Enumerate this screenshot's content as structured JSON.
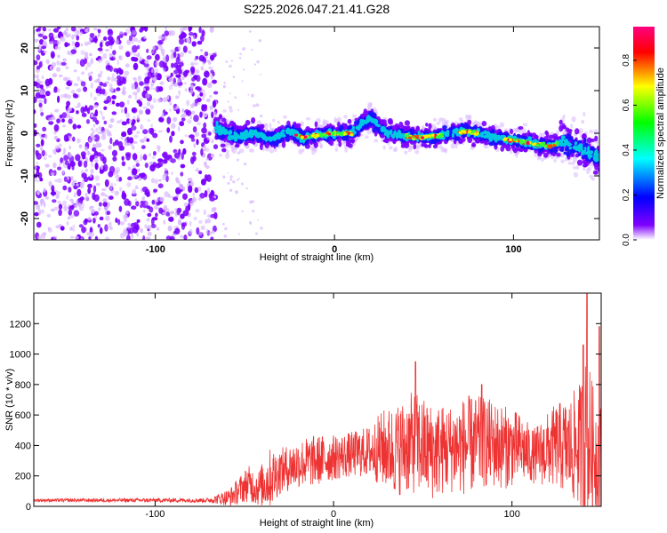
{
  "figure_title": "S225.2026.047.21.41.G28",
  "chart_data": [
    {
      "type": "heatmap",
      "subtype": "scatter-spectrogram",
      "title": "",
      "xlabel": "Height of straight line (km)",
      "ylabel": "Frequency (Hz)",
      "xlim": [
        -168,
        148
      ],
      "ylim": [
        -25,
        25
      ],
      "x_ticks": [
        -100,
        0,
        100
      ],
      "y_ticks": [
        -20,
        -10,
        0,
        10,
        20
      ],
      "x_tick_labels": [
        "-100",
        "0",
        "100"
      ],
      "y_tick_labels": [
        "-20",
        "-10",
        "0",
        "10",
        "20"
      ],
      "colorbar": {
        "label": "Normalized spectral amplitude",
        "range": [
          0,
          0.95
        ],
        "ticks": [
          0,
          0.2,
          0.4,
          0.6,
          0.8
        ],
        "tick_labels": [
          "0.0",
          "0.2",
          "0.4",
          "0.6",
          "0.8"
        ],
        "colormap": [
          "#ffffff",
          "#7f00ff",
          "#0000ff",
          "#00ffff",
          "#00ff00",
          "#ffff00",
          "#ff0000",
          "#ff0080"
        ]
      },
      "noise_region_x": [
        -168,
        -66
      ],
      "signal_start_x": -66,
      "ridge": {
        "x": [
          -66,
          -55,
          -45,
          -35,
          -25,
          -18,
          -10,
          0,
          10,
          16,
          20,
          30,
          45,
          60,
          75,
          90,
          105,
          120,
          128,
          140,
          148
        ],
        "freq": [
          1.5,
          -1,
          0,
          -1.5,
          0.5,
          -1,
          -0.5,
          0,
          0,
          2.5,
          3.5,
          0,
          -1,
          -0.5,
          0.5,
          -1,
          -2,
          -3,
          -2,
          -4,
          -6
        ]
      }
    },
    {
      "type": "line",
      "title": "",
      "xlabel": "Height of straight line (km)",
      "ylabel": "SNR (10 * v/v)",
      "xlim": [
        -168,
        150
      ],
      "ylim": [
        0,
        1400
      ],
      "x_ticks": [
        -100,
        0,
        100
      ],
      "y_ticks": [
        0,
        200,
        400,
        600,
        800,
        1000,
        1200
      ],
      "x_tick_labels": [
        "-100",
        "0",
        "100"
      ],
      "y_tick_labels": [
        "0",
        "200",
        "400",
        "600",
        "800",
        "1000",
        "1200"
      ],
      "color": "#ee3333",
      "envelope": {
        "x": [
          -168,
          -70,
          -58,
          -48,
          -42,
          -36,
          -30,
          -20,
          -10,
          0,
          10,
          20,
          28,
          35,
          45,
          55,
          65,
          75,
          85,
          95,
          105,
          112,
          118,
          125,
          132,
          138,
          142,
          146,
          150
        ],
        "base": [
          40,
          40,
          60,
          150,
          120,
          180,
          230,
          280,
          300,
          320,
          340,
          360,
          380,
          370,
          420,
          360,
          380,
          400,
          420,
          390,
          380,
          330,
          360,
          400,
          380,
          400,
          420,
          360,
          300
        ],
        "amp": [
          10,
          15,
          60,
          120,
          120,
          200,
          150,
          160,
          170,
          150,
          150,
          170,
          260,
          300,
          340,
          320,
          290,
          330,
          300,
          280,
          230,
          180,
          230,
          280,
          330,
          420,
          600,
          400,
          380
        ]
      },
      "peaks": [
        {
          "x": 46,
          "y": 950
        },
        {
          "x": 83,
          "y": 800
        },
        {
          "x": 140,
          "y": 1060
        },
        {
          "x": 142,
          "y": 1400
        },
        {
          "x": 149,
          "y": 1180
        }
      ]
    }
  ]
}
